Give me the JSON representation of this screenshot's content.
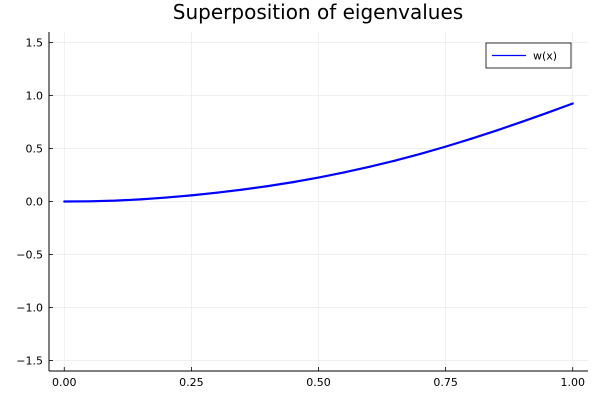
{
  "chart_data": {
    "type": "line",
    "title": "Superposition of eigenvalues",
    "xlabel": "",
    "ylabel": "",
    "xlim": [
      -0.03,
      1.03
    ],
    "ylim": [
      -1.6,
      1.6
    ],
    "xticks": [
      0.0,
      0.25,
      0.5,
      0.75,
      1.0
    ],
    "xtick_labels": [
      "0.00",
      "0.25",
      "0.50",
      "0.75",
      "1.00"
    ],
    "yticks": [
      -1.5,
      -1.0,
      -0.5,
      0.0,
      0.5,
      1.0,
      1.5
    ],
    "ytick_labels": [
      "−1.5",
      "−1.0",
      "−0.5",
      "0.0",
      "0.5",
      "1.0",
      "1.5"
    ],
    "grid": true,
    "legend_position": "top-right",
    "series": [
      {
        "name": "w(x)",
        "color": "#0000ff",
        "x": [
          0.0,
          0.05,
          0.1,
          0.15,
          0.2,
          0.25,
          0.3,
          0.35,
          0.4,
          0.45,
          0.5,
          0.55,
          0.6,
          0.65,
          0.7,
          0.75,
          0.8,
          0.85,
          0.9,
          0.95,
          1.0
        ],
        "y": [
          0.0,
          0.002,
          0.008,
          0.02,
          0.037,
          0.058,
          0.083,
          0.112,
          0.145,
          0.183,
          0.226,
          0.274,
          0.327,
          0.385,
          0.449,
          0.518,
          0.592,
          0.67,
          0.752,
          0.837,
          0.925
        ]
      }
    ]
  }
}
